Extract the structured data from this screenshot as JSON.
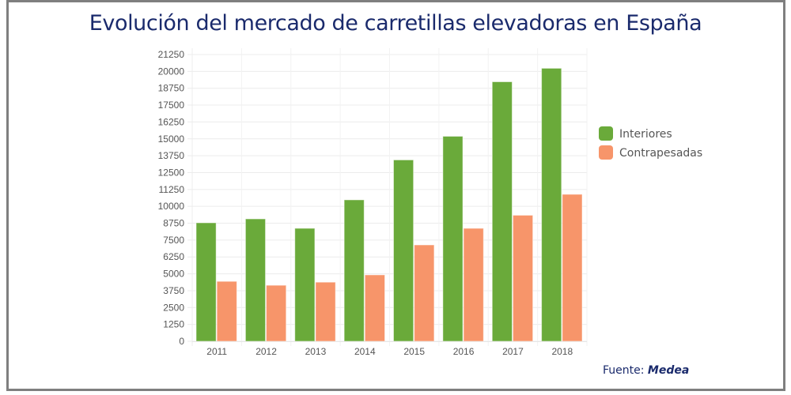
{
  "frame": {
    "border_color": "#7f7f7f"
  },
  "title": "Evolución del mercado de carretillas elevadoras en España",
  "source": {
    "label": "Fuente:",
    "name": "Medea"
  },
  "chart_data": {
    "type": "bar",
    "title": "Evolución del mercado de carretillas elevadoras en España",
    "xlabel": "",
    "ylabel": "",
    "categories": [
      "2011",
      "2012",
      "2013",
      "2014",
      "2015",
      "2016",
      "2017",
      "2018"
    ],
    "series": [
      {
        "name": "Interiores",
        "color": "#6aaa3a",
        "values": [
          8780,
          9070,
          8370,
          10480,
          13440,
          15190,
          19230,
          20230
        ]
      },
      {
        "name": "Contrapesadas",
        "color": "#f7956a",
        "values": [
          4440,
          4150,
          4380,
          4920,
          7140,
          8370,
          9340,
          10890
        ]
      }
    ],
    "ylim": [
      0,
      21250
    ],
    "yticks": [
      0,
      1250,
      2500,
      3750,
      5000,
      6250,
      7500,
      8750,
      10000,
      11250,
      12500,
      13750,
      15000,
      16250,
      17500,
      18750,
      20000,
      21250
    ],
    "grid": true,
    "legend": "right"
  }
}
